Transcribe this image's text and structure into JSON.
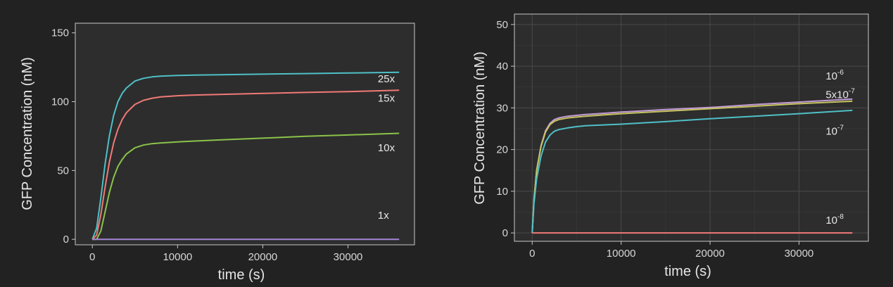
{
  "chart_data": [
    {
      "type": "line",
      "xlabel": "time (s)",
      "ylabel": "GFP Concentration (nM)",
      "xlim": [
        -2000,
        37800
      ],
      "ylim": [
        -4,
        157
      ],
      "xticks": [
        0,
        10000,
        20000,
        30000
      ],
      "yticks": [
        0,
        50,
        100,
        150
      ],
      "grid": false,
      "legend": "none (direct labels)",
      "series": [
        {
          "name": "25x",
          "color": "#4fc0c7",
          "x": [
            0,
            500,
            1000,
            1500,
            2000,
            2500,
            3000,
            3500,
            4000,
            5000,
            6000,
            7000,
            8000,
            10000,
            12000,
            15000,
            20000,
            25000,
            30000,
            36000
          ],
          "values": [
            0,
            8,
            30,
            55,
            75,
            90,
            100,
            106,
            110,
            115,
            117,
            118,
            118.5,
            119,
            119.3,
            119.6,
            120,
            120.4,
            120.8,
            121.3
          ]
        },
        {
          "name": "15x",
          "color": "#f07a76",
          "x": [
            0,
            500,
            1000,
            1500,
            2000,
            2500,
            3000,
            3500,
            4000,
            5000,
            6000,
            7000,
            8000,
            10000,
            12000,
            15000,
            20000,
            25000,
            30000,
            36000
          ],
          "values": [
            0,
            3,
            18,
            38,
            56,
            70,
            80,
            87,
            92,
            98,
            101,
            102.5,
            103.5,
            104.3,
            104.8,
            105.3,
            106,
            106.7,
            107.3,
            108.3
          ]
        },
        {
          "name": "10x",
          "color": "#8bc34a",
          "x": [
            0,
            500,
            1000,
            1500,
            2000,
            2500,
            3000,
            3500,
            4000,
            5000,
            6000,
            7000,
            8000,
            10000,
            12000,
            15000,
            20000,
            25000,
            30000,
            36000
          ],
          "values": [
            0,
            0,
            6,
            20,
            34,
            45,
            53,
            58,
            62,
            66.5,
            68.5,
            69.5,
            70,
            70.8,
            71.4,
            72.2,
            73.5,
            74.8,
            75.8,
            77
          ]
        },
        {
          "name": "1x",
          "color": "#a385d6",
          "x": [
            0,
            36000
          ],
          "values": [
            0,
            0
          ]
        }
      ],
      "labels": [
        {
          "text": "25x",
          "x": 33500,
          "y": 114
        },
        {
          "text": "15x",
          "x": 33500,
          "y": 100
        },
        {
          "text": "10x",
          "x": 33500,
          "y": 64
        },
        {
          "text": "1x",
          "x": 33500,
          "y": 15
        }
      ]
    },
    {
      "type": "line",
      "xlabel": "time (s)",
      "ylabel": "GFP Concentration (nM)",
      "xlim": [
        -2000,
        37800
      ],
      "ylim": [
        -2,
        52.5
      ],
      "xticks": [
        0,
        10000,
        20000,
        30000
      ],
      "yticks": [
        0,
        10,
        20,
        30,
        40,
        50
      ],
      "grid": true,
      "legend": "none (direct labels)",
      "series": [
        {
          "name": "10⁻⁶",
          "color": "#c49bd6",
          "x": [
            0,
            200,
            500,
            1000,
            1500,
            2000,
            2500,
            3000,
            3500,
            4000,
            5000,
            6000,
            8000,
            10000,
            15000,
            20000,
            25000,
            30000,
            36000
          ],
          "values": [
            0,
            8,
            15,
            21,
            24.5,
            26.3,
            27.2,
            27.6,
            27.8,
            28,
            28.2,
            28.4,
            28.7,
            29,
            29.6,
            30.1,
            30.8,
            31.4,
            32.1
          ]
        },
        {
          "name": "5x10⁻⁷",
          "color": "#c5c560",
          "x": [
            0,
            200,
            500,
            1000,
            1500,
            2000,
            2500,
            3000,
            3500,
            4000,
            5000,
            6000,
            8000,
            10000,
            15000,
            20000,
            25000,
            30000,
            36000
          ],
          "values": [
            0,
            8,
            15,
            20.8,
            24.2,
            26,
            26.8,
            27.2,
            27.4,
            27.6,
            27.8,
            28,
            28.3,
            28.6,
            29.2,
            29.8,
            30.4,
            31,
            31.6
          ]
        },
        {
          "name": "10⁻⁷",
          "color": "#4fc0c7",
          "x": [
            0,
            200,
            500,
            1000,
            1500,
            2000,
            2500,
            3000,
            3500,
            4000,
            5000,
            6000,
            8000,
            10000,
            15000,
            20000,
            25000,
            30000,
            36000
          ],
          "values": [
            0,
            7,
            13,
            18.5,
            21.8,
            23.5,
            24.4,
            24.8,
            25,
            25.2,
            25.5,
            25.7,
            25.9,
            26.1,
            26.7,
            27.4,
            28,
            28.6,
            29.4
          ]
        },
        {
          "name": "10⁻⁸",
          "color": "#f07a76",
          "x": [
            0,
            36000
          ],
          "values": [
            0,
            0
          ]
        }
      ],
      "labels": [
        {
          "base": "10",
          "sup": "-6",
          "x": 33000,
          "y": 36.8
        },
        {
          "base": "5x10",
          "sup": "-7",
          "x": 33000,
          "y": 32.3
        },
        {
          "base": "10",
          "sup": "-7",
          "x": 33000,
          "y": 23.6
        },
        {
          "base": "10",
          "sup": "-8",
          "x": 33000,
          "y": 2.2
        }
      ]
    }
  ]
}
